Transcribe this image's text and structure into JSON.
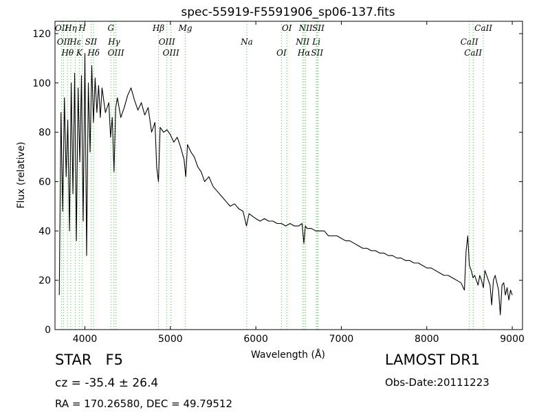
{
  "chart_data": {
    "type": "line",
    "title": "spec-55919-F5591906_sp06-137.fits",
    "xlabel": "Wavelength (Å)",
    "ylabel": "Flux (relative)",
    "xlim": [
      3650,
      9120
    ],
    "ylim": [
      0,
      125
    ],
    "xticks": [
      4000,
      5000,
      6000,
      7000,
      8000,
      9000
    ],
    "yticks": [
      0,
      20,
      40,
      60,
      80,
      100,
      120
    ],
    "grid": false,
    "series": [
      {
        "color": "#000000",
        "x": [
          3700,
          3720,
          3740,
          3760,
          3780,
          3800,
          3820,
          3840,
          3860,
          3880,
          3900,
          3920,
          3940,
          3960,
          3980,
          4000,
          4020,
          4040,
          4060,
          4080,
          4100,
          4120,
          4140,
          4160,
          4180,
          4200,
          4240,
          4280,
          4300,
          4320,
          4340,
          4360,
          4380,
          4420,
          4460,
          4500,
          4540,
          4580,
          4620,
          4660,
          4700,
          4740,
          4780,
          4820,
          4840,
          4861,
          4880,
          4920,
          4960,
          5000,
          5040,
          5080,
          5120,
          5160,
          5180,
          5200,
          5240,
          5280,
          5320,
          5360,
          5400,
          5450,
          5500,
          5550,
          5600,
          5650,
          5700,
          5750,
          5800,
          5850,
          5890,
          5920,
          5960,
          6000,
          6050,
          6100,
          6150,
          6200,
          6250,
          6300,
          6350,
          6400,
          6450,
          6500,
          6540,
          6562,
          6580,
          6600,
          6650,
          6700,
          6750,
          6800,
          6850,
          6900,
          6950,
          7000,
          7050,
          7100,
          7150,
          7200,
          7250,
          7300,
          7350,
          7400,
          7450,
          7500,
          7550,
          7600,
          7650,
          7700,
          7750,
          7800,
          7850,
          7900,
          7950,
          8000,
          8050,
          8100,
          8150,
          8200,
          8250,
          8300,
          8350,
          8400,
          8440,
          8460,
          8480,
          8498,
          8520,
          8542,
          8560,
          8580,
          8600,
          8620,
          8640,
          8662,
          8680,
          8700,
          8720,
          8740,
          8760,
          8780,
          8800,
          8820,
          8840,
          8860,
          8880,
          8900,
          8920,
          8940,
          8960,
          8980,
          9000
        ],
        "y": [
          14,
          88,
          48,
          94,
          62,
          85,
          40,
          100,
          55,
          104,
          36,
          98,
          68,
          103,
          44,
          112,
          30,
          100,
          72,
          107,
          84,
          102,
          88,
          99,
          86,
          98,
          88,
          92,
          78,
          86,
          64,
          90,
          94,
          86,
          90,
          95,
          98,
          93,
          89,
          92,
          87,
          90,
          80,
          84,
          66,
          60,
          82,
          80,
          81,
          79,
          76,
          78,
          74,
          69,
          62,
          75,
          72,
          70,
          66,
          64,
          60,
          62,
          58,
          56,
          54,
          52,
          50,
          51,
          49,
          48,
          42,
          47,
          46,
          45,
          44,
          45,
          44,
          44,
          43,
          43,
          42,
          43,
          42,
          42,
          43,
          35,
          42,
          41,
          41,
          40,
          40,
          40,
          38,
          38,
          38,
          37,
          36,
          36,
          35,
          34,
          33,
          33,
          32,
          32,
          31,
          31,
          30,
          30,
          29,
          29,
          28,
          28,
          27,
          27,
          26,
          25,
          25,
          24,
          23,
          22,
          22,
          21,
          20,
          19,
          16,
          32,
          38,
          26,
          24,
          21,
          22,
          20,
          18,
          22,
          20,
          17,
          24,
          22,
          20,
          18,
          10,
          20,
          22,
          19,
          16,
          6,
          18,
          19,
          14,
          17,
          12,
          16,
          14
        ]
      }
    ],
    "line_annotations": [
      {
        "x": 3727,
        "lines": [
          "OII"
        ]
      },
      {
        "x": 3750,
        "lines": [
          "OII"
        ]
      },
      {
        "x": 3797,
        "lines": [
          "Hθ"
        ]
      },
      {
        "x": 3835,
        "lines": [
          "Hη"
        ]
      },
      {
        "x": 3889,
        "lines": [
          "Hε"
        ]
      },
      {
        "x": 3934,
        "lines": [
          "K"
        ]
      },
      {
        "x": 3969,
        "lines": [
          "H"
        ]
      },
      {
        "x": 4072,
        "lines": [
          "SII"
        ]
      },
      {
        "x": 4102,
        "lines": [
          "Hδ"
        ]
      },
      {
        "x": 4304,
        "lines": [
          "G"
        ]
      },
      {
        "x": 4341,
        "lines": [
          "Hγ"
        ]
      },
      {
        "x": 4363,
        "lines": [
          "OIII"
        ]
      },
      {
        "x": 4861,
        "lines": [
          "Hβ"
        ]
      },
      {
        "x": 4959,
        "lines": [
          "OIII"
        ]
      },
      {
        "x": 5007,
        "lines": [
          "OIII"
        ]
      },
      {
        "x": 5175,
        "lines": [
          "Mg"
        ]
      },
      {
        "x": 5894,
        "lines": [
          "Na"
        ]
      },
      {
        "x": 6300,
        "lines": [
          "OI"
        ]
      },
      {
        "x": 6363,
        "lines": [
          "OI"
        ]
      },
      {
        "x": 6548,
        "lines": [
          "NII"
        ]
      },
      {
        "x": 6563,
        "lines": [
          "Hα"
        ]
      },
      {
        "x": 6583,
        "lines": [
          "NII"
        ]
      },
      {
        "x": 6708,
        "lines": [
          "Li"
        ]
      },
      {
        "x": 6717,
        "lines": [
          "SII"
        ]
      },
      {
        "x": 6731,
        "lines": [
          "SII"
        ]
      },
      {
        "x": 8498,
        "lines": [
          "CaII"
        ]
      },
      {
        "x": 8542,
        "lines": [
          "CaII"
        ]
      },
      {
        "x": 8662,
        "lines": [
          "CaII"
        ]
      }
    ],
    "annotation_color": "#33cc33"
  },
  "info": {
    "object_class": "STAR   F5",
    "cz": "cz = -35.4 ± 26.4",
    "radec": "RA = 170.26580, DEC = 49.79512",
    "survey": "LAMOST DR1",
    "obs_date": "Obs-Date:20111223"
  }
}
